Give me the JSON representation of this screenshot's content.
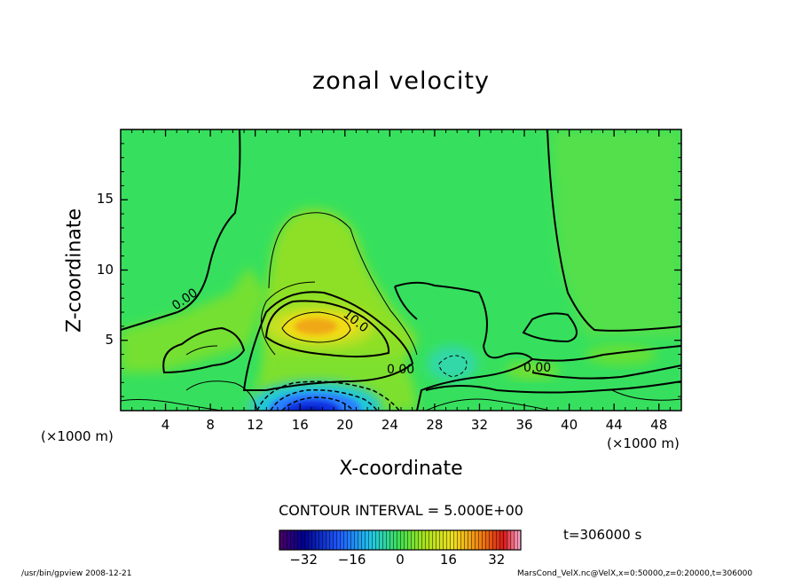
{
  "chart_data": {
    "type": "heatmap",
    "title": "zonal velocity",
    "xlabel": "X-coordinate",
    "ylabel": "Z-coordinate",
    "x_unit_left": "(×1000 m)",
    "x_unit_right": "(×1000 m)",
    "x_ticks": [
      "4",
      "8",
      "12",
      "16",
      "20",
      "24",
      "28",
      "32",
      "36",
      "40",
      "44",
      "48"
    ],
    "y_ticks": [
      "5",
      "10",
      "15"
    ],
    "xlim": [
      0,
      50
    ],
    "ylim": [
      0,
      20
    ],
    "contour_interval_text": "CONTOUR INTERVAL = 5.000E+00",
    "contour_labels": [
      "0.00",
      "10.0",
      "0.00",
      "0.00"
    ],
    "colorbar": {
      "range": [
        -40,
        40
      ],
      "tick_labels": [
        "−32",
        "−16",
        "0",
        "16",
        "32"
      ],
      "tick_values": [
        -32,
        -16,
        0,
        16,
        32
      ]
    },
    "features": [
      {
        "name": "positive jet core",
        "x": 17.5,
        "z": 6.0,
        "value": 17
      },
      {
        "name": "negative core near surface",
        "x": 17.5,
        "z": 0.3,
        "value": -30
      },
      {
        "name": "weak positive plume",
        "x": 18,
        "z": 11,
        "value": 5
      },
      {
        "name": "weak negative patch",
        "x": 29,
        "z": 3.5,
        "value": -5
      }
    ]
  },
  "time_text": "t=306000 s",
  "footer": {
    "left": "/usr/bin/gpview  2008-12-21",
    "right": "MarsCond_VelX.nc@VelX,x=0:50000,z=0:20000,t=306000"
  }
}
